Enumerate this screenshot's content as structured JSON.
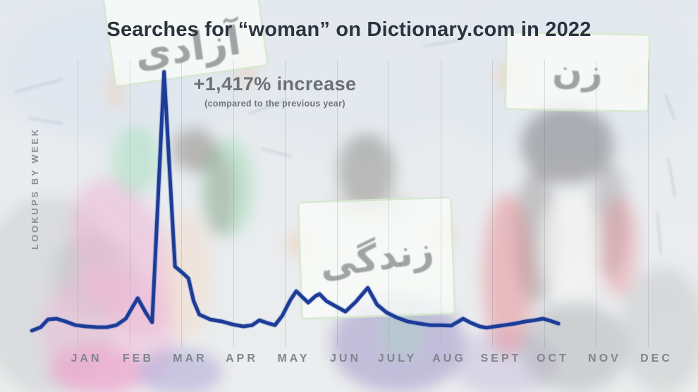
{
  "title": "Searches for “woman” on Dictionary.com in 2022",
  "annotation": {
    "headline": "+1,417% increase",
    "subtext": "(compared to the previous year)"
  },
  "y_axis_label": "LOOKUPS BY WEEK",
  "background": {
    "signs": [
      {
        "text": "آزادی"
      },
      {
        "text": "زن"
      },
      {
        "text": "زندگی"
      }
    ]
  },
  "colors": {
    "line": "#1d3c96",
    "line_halo": "#7b8fd0",
    "title": "#2b333e",
    "annotation": "#6b7077",
    "axis_labels": "#80858d",
    "gridline": "#6e737d"
  },
  "chart_data": {
    "type": "line",
    "title": "Searches for “woman” on Dictionary.com in 2022",
    "ylabel": "LOOKUPS BY WEEK",
    "x_tick_labels": [
      "JAN",
      "FEB",
      "MAR",
      "APR",
      "MAY",
      "JUN",
      "JULY",
      "AUG",
      "SEPT",
      "OCT",
      "NOV",
      "DEC"
    ],
    "x_unit": "months (0 = start of JAN gridline)",
    "y_unit": "relative weekly lookups, peak spike = 100",
    "ylim": [
      0,
      105
    ],
    "grid": "vertical month gridlines only, no y ticks",
    "legend": "none",
    "annotations": [
      "+1,417% increase (compared to the previous year)"
    ],
    "series": [
      {
        "name": "lookups for \"woman\" by week",
        "points": [
          [
            -0.88,
            0.3
          ],
          [
            -0.71,
            1.6
          ],
          [
            -0.57,
            4.6
          ],
          [
            -0.41,
            4.9
          ],
          [
            -0.23,
            3.8
          ],
          [
            -0.04,
            2.4
          ],
          [
            0.16,
            1.9
          ],
          [
            0.38,
            1.6
          ],
          [
            0.57,
            1.6
          ],
          [
            0.75,
            2.4
          ],
          [
            0.93,
            4.9
          ],
          [
            1.16,
            12.8
          ],
          [
            1.32,
            7.1
          ],
          [
            1.44,
            3.5
          ],
          [
            1.67,
            100
          ],
          [
            1.88,
            25
          ],
          [
            2.04,
            22.3
          ],
          [
            2.14,
            20.4
          ],
          [
            2.24,
            11.7
          ],
          [
            2.35,
            6.5
          ],
          [
            2.56,
            4.6
          ],
          [
            2.79,
            3.8
          ],
          [
            2.99,
            2.7
          ],
          [
            3.2,
            1.9
          ],
          [
            3.37,
            2.4
          ],
          [
            3.51,
            4.3
          ],
          [
            3.65,
            3.3
          ],
          [
            3.81,
            2.4
          ],
          [
            3.95,
            6.0
          ],
          [
            4.11,
            12.2
          ],
          [
            4.22,
            15.5
          ],
          [
            4.35,
            13.0
          ],
          [
            4.45,
            11.1
          ],
          [
            4.59,
            13.6
          ],
          [
            4.67,
            14.4
          ],
          [
            4.8,
            11.7
          ],
          [
            4.97,
            9.8
          ],
          [
            5.17,
            7.6
          ],
          [
            5.37,
            11.4
          ],
          [
            5.6,
            16.8
          ],
          [
            5.78,
            10.3
          ],
          [
            5.96,
            7.3
          ],
          [
            6.15,
            5.4
          ],
          [
            6.37,
            3.8
          ],
          [
            6.6,
            3.0
          ],
          [
            6.8,
            2.4
          ],
          [
            7.01,
            2.4
          ],
          [
            7.21,
            2.2
          ],
          [
            7.35,
            3.8
          ],
          [
            7.44,
            4.9
          ],
          [
            7.59,
            3.3
          ],
          [
            7.76,
            1.9
          ],
          [
            7.89,
            1.4
          ],
          [
            8.07,
            1.9
          ],
          [
            8.24,
            2.4
          ],
          [
            8.44,
            3.0
          ],
          [
            8.64,
            3.8
          ],
          [
            8.82,
            4.3
          ],
          [
            8.98,
            4.9
          ],
          [
            9.12,
            4.1
          ],
          [
            9.28,
            3.0
          ]
        ]
      }
    ]
  }
}
